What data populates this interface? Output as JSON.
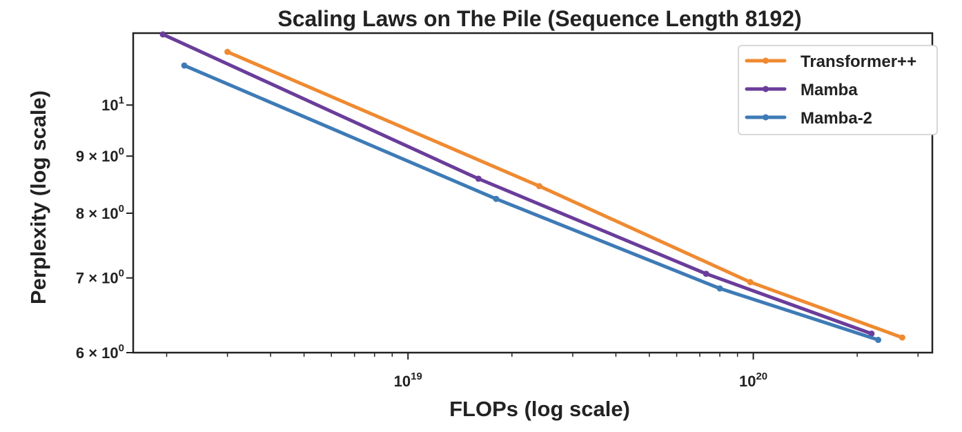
{
  "chart_data": {
    "type": "line",
    "title": "Scaling Laws on The Pile (Sequence Length 8192)",
    "xlabel": "FLOPs (log scale)",
    "ylabel": "Perplexity (log scale)",
    "x_scale": "log",
    "y_scale": "log",
    "xlim": [
      1.6e+18,
      3.3e+20
    ],
    "ylim": [
      6.0,
      11.6
    ],
    "x_ticks": [
      {
        "value": 1e+19,
        "base": "10",
        "exp": "19"
      },
      {
        "value": 1e+20,
        "base": "10",
        "exp": "20"
      }
    ],
    "y_ticks": [
      {
        "value": 6,
        "mant": "6 × 10",
        "exp": "0"
      },
      {
        "value": 7,
        "mant": "7 × 10",
        "exp": "0"
      },
      {
        "value": 8,
        "mant": "8 × 10",
        "exp": "0"
      },
      {
        "value": 9,
        "mant": "9 × 10",
        "exp": "0"
      },
      {
        "value": 10,
        "mant": "10",
        "exp": "1"
      }
    ],
    "grid": false,
    "legend_position": "top-right",
    "series": [
      {
        "name": "Transformer++",
        "color": "#ef8a31",
        "x": [
          3e+18,
          2.4e+19,
          9.8e+19,
          2.7e+20
        ],
        "y": [
          11.16,
          8.46,
          6.94,
          6.19
        ]
      },
      {
        "name": "Mamba",
        "color": "#6a3d9a",
        "x": [
          1.95e+18,
          1.6e+19,
          7.3e+19,
          2.2e+20
        ],
        "y": [
          11.57,
          8.59,
          7.06,
          6.24
        ]
      },
      {
        "name": "Mamba-2",
        "color": "#3e7bb6",
        "x": [
          2.25e+18,
          1.8e+19,
          8e+19,
          2.3e+20
        ],
        "y": [
          10.85,
          8.24,
          6.85,
          6.16
        ]
      }
    ]
  }
}
